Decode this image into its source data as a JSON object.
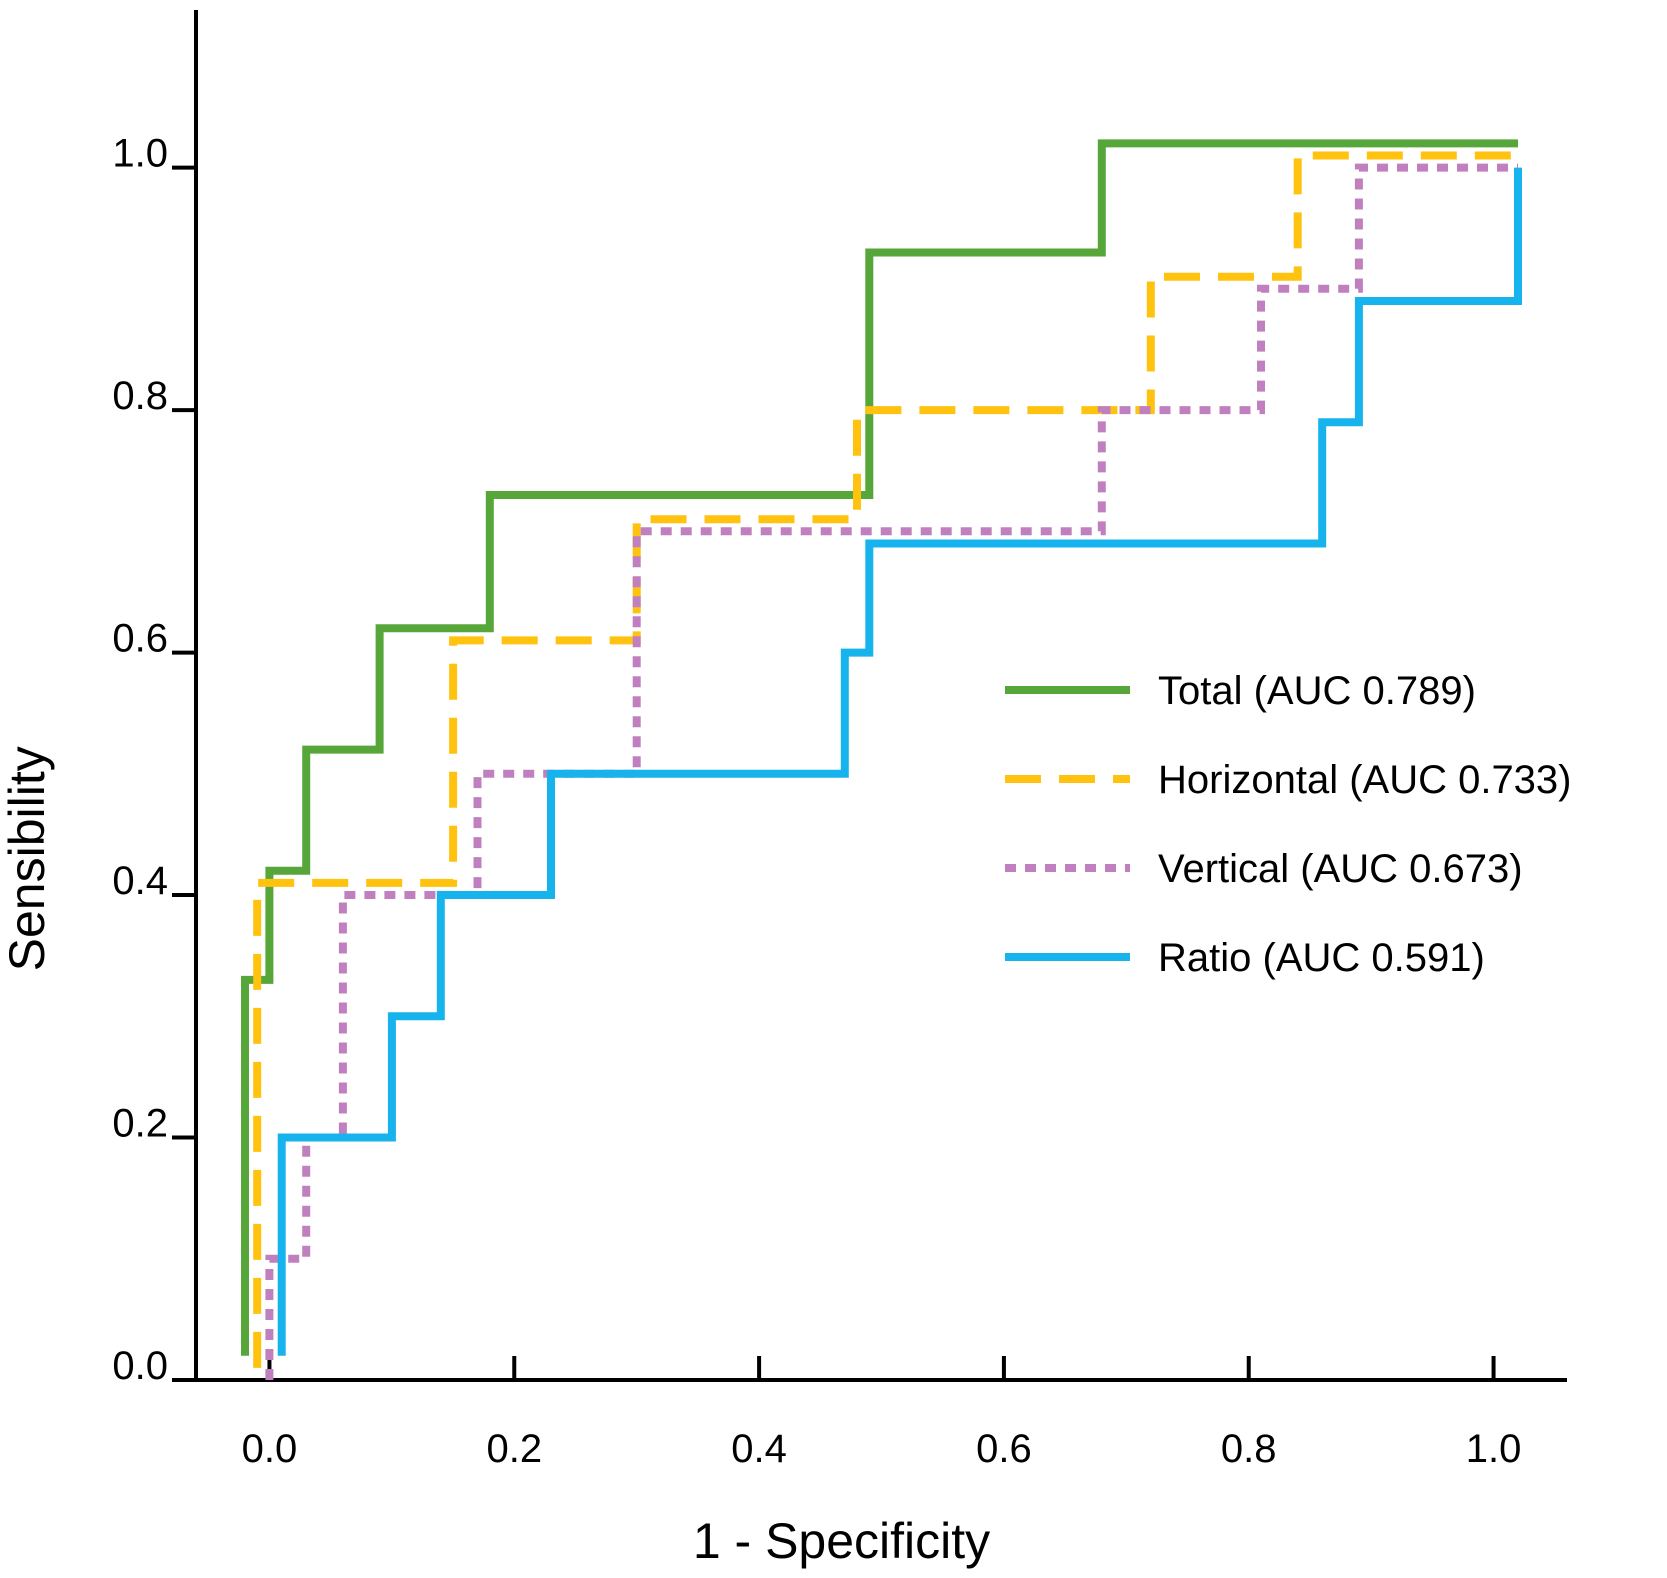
{
  "chart_data": {
    "type": "line",
    "title": "",
    "xlabel": "1 - Specificity",
    "ylabel": "Sensibility",
    "xlim": [
      -0.06,
      1.06
    ],
    "ylim": [
      0,
      1.13
    ],
    "xticks": [
      "0.0",
      "0.2",
      "0.4",
      "0.6",
      "0.8",
      "1.0"
    ],
    "yticks": [
      "0.0",
      "0.2",
      "0.4",
      "0.6",
      "0.8",
      "1.0"
    ],
    "xtick_values": [
      0,
      0.2,
      0.4,
      0.6,
      0.8,
      1.0
    ],
    "ytick_values": [
      0,
      0.2,
      0.4,
      0.6,
      0.8,
      1.0
    ],
    "grid": false,
    "legend_position": "center-right",
    "series": [
      {
        "name": "Total (AUC 0.789)",
        "color": "#56a63a",
        "style": "solid",
        "points": [
          [
            -0.02,
            0.02
          ],
          [
            -0.02,
            0.33
          ],
          [
            0.0,
            0.33
          ],
          [
            0.0,
            0.42
          ],
          [
            0.03,
            0.42
          ],
          [
            0.03,
            0.52
          ],
          [
            0.09,
            0.52
          ],
          [
            0.09,
            0.62
          ],
          [
            0.18,
            0.62
          ],
          [
            0.18,
            0.73
          ],
          [
            0.49,
            0.73
          ],
          [
            0.49,
            0.93
          ],
          [
            0.68,
            0.93
          ],
          [
            0.68,
            1.02
          ],
          [
            1.02,
            1.02
          ]
        ]
      },
      {
        "name": "Horizontal (AUC 0.733)",
        "color": "#ffc20e",
        "style": "dashed",
        "points": [
          [
            -0.01,
            0.01
          ],
          [
            -0.01,
            0.41
          ],
          [
            0.15,
            0.41
          ],
          [
            0.15,
            0.61
          ],
          [
            0.3,
            0.61
          ],
          [
            0.3,
            0.71
          ],
          [
            0.48,
            0.71
          ],
          [
            0.48,
            0.8
          ],
          [
            0.72,
            0.8
          ],
          [
            0.72,
            0.91
          ],
          [
            0.84,
            0.91
          ],
          [
            0.84,
            1.01
          ],
          [
            1.02,
            1.01
          ]
        ]
      },
      {
        "name": "Vertical (AUC 0.673)",
        "color": "#c080bf",
        "style": "dotted",
        "points": [
          [
            0.0,
            0.0
          ],
          [
            0.0,
            0.1
          ],
          [
            0.03,
            0.1
          ],
          [
            0.03,
            0.2
          ],
          [
            0.06,
            0.2
          ],
          [
            0.06,
            0.4
          ],
          [
            0.17,
            0.4
          ],
          [
            0.17,
            0.5
          ],
          [
            0.3,
            0.5
          ],
          [
            0.3,
            0.7
          ],
          [
            0.68,
            0.7
          ],
          [
            0.68,
            0.8
          ],
          [
            0.81,
            0.8
          ],
          [
            0.81,
            0.9
          ],
          [
            0.89,
            0.9
          ],
          [
            0.89,
            1.0
          ],
          [
            1.02,
            1.0
          ]
        ]
      },
      {
        "name": "Ratio (AUC 0.591)",
        "color": "#17b3ec",
        "style": "solid",
        "points": [
          [
            0.01,
            0.02
          ],
          [
            0.01,
            0.2
          ],
          [
            0.1,
            0.2
          ],
          [
            0.1,
            0.3
          ],
          [
            0.14,
            0.3
          ],
          [
            0.14,
            0.4
          ],
          [
            0.23,
            0.4
          ],
          [
            0.23,
            0.5
          ],
          [
            0.47,
            0.5
          ],
          [
            0.47,
            0.6
          ],
          [
            0.49,
            0.6
          ],
          [
            0.49,
            0.69
          ],
          [
            0.86,
            0.69
          ],
          [
            0.86,
            0.79
          ],
          [
            0.89,
            0.79
          ],
          [
            0.89,
            0.89
          ],
          [
            1.02,
            0.89
          ],
          [
            1.02,
            1.0
          ]
        ]
      }
    ]
  }
}
